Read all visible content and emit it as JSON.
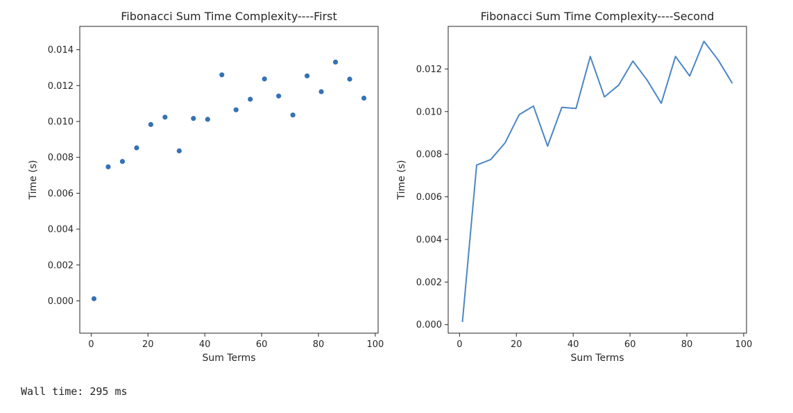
{
  "chart_data": [
    {
      "type": "scatter",
      "title": "Fibonacci Sum Time Complexity----First",
      "xlabel": "Sum Terms",
      "ylabel": "Time (s)",
      "xlim": [
        -4,
        101
      ],
      "ylim": [
        -0.0018,
        0.0153
      ],
      "xticks": [
        0,
        20,
        40,
        60,
        80,
        100
      ],
      "yticks": [
        0.0,
        0.002,
        0.004,
        0.006,
        0.008,
        0.01,
        0.012,
        0.014
      ],
      "ytick_decimals": 3,
      "grid": false,
      "color": "#3571b5",
      "x": [
        1,
        6,
        11,
        16,
        21,
        26,
        31,
        36,
        41,
        46,
        51,
        56,
        61,
        66,
        71,
        76,
        81,
        86,
        91,
        96
      ],
      "y": [
        0.00012,
        0.00747,
        0.00777,
        0.00853,
        0.00983,
        0.01024,
        0.00836,
        0.01017,
        0.01012,
        0.0126,
        0.01065,
        0.01124,
        0.01237,
        0.01142,
        0.01036,
        0.01254,
        0.01166,
        0.01331,
        0.01236,
        0.0113
      ]
    },
    {
      "type": "line",
      "title": "Fibonacci Sum Time Complexity----Second",
      "xlabel": "Sum Terms",
      "ylabel": "Time (s)",
      "xlim": [
        -4,
        101
      ],
      "ylim": [
        -0.0004,
        0.014
      ],
      "xticks": [
        0,
        20,
        40,
        60,
        80,
        100
      ],
      "yticks": [
        0.0,
        0.002,
        0.004,
        0.006,
        0.008,
        0.01,
        0.012
      ],
      "ytick_decimals": 3,
      "grid": false,
      "color": "#4a86c5",
      "x": [
        1,
        6,
        11,
        16,
        21,
        26,
        31,
        36,
        41,
        46,
        51,
        56,
        61,
        66,
        71,
        76,
        81,
        86,
        91,
        96
      ],
      "y": [
        0.00012,
        0.00749,
        0.00775,
        0.00853,
        0.00986,
        0.01026,
        0.00838,
        0.0102,
        0.01015,
        0.01259,
        0.01069,
        0.01124,
        0.01237,
        0.01148,
        0.01039,
        0.01259,
        0.01167,
        0.0133,
        0.01243,
        0.01133
      ]
    }
  ],
  "output": {
    "wall_time": "Wall time: 295 ms"
  }
}
